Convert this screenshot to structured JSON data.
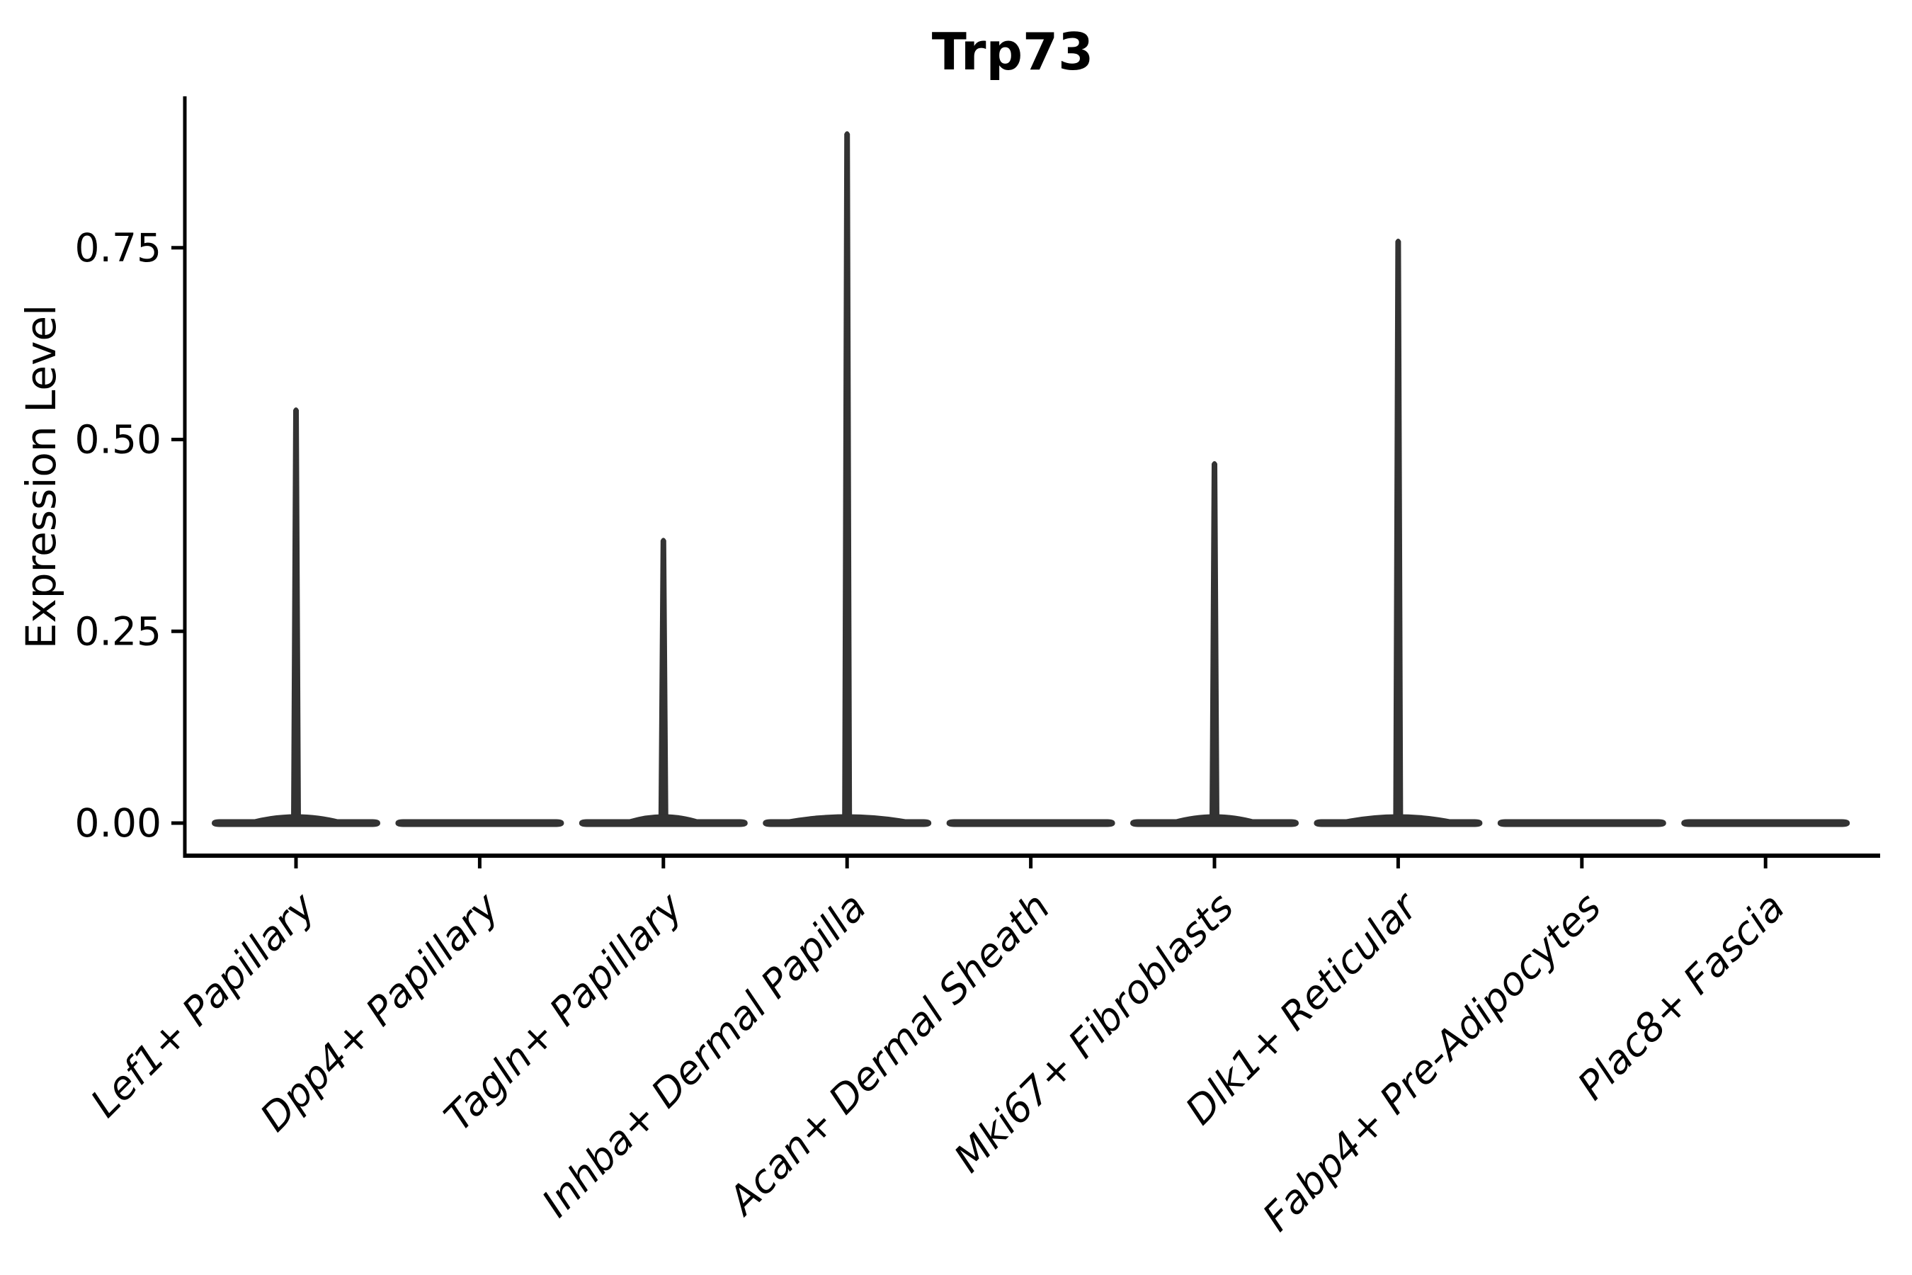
{
  "chart_data": {
    "type": "violin",
    "title": "Trp73",
    "ylabel": "Expression Level",
    "xlabel": "",
    "categories": [
      "Lef1+ Papillary",
      "Dpp4+ Papillary",
      "Tagln+ Papillary",
      "Inhba+ Dermal Papilla",
      "Acan+ Dermal Sheath",
      "Mki67+ Fibroblasts",
      "Dlk1+ Reticular",
      "Fabp4+ Pre-Adipocytes",
      "Plac8+ Fascia"
    ],
    "series": [
      {
        "name": "Trp73 expression (violin max per cluster)",
        "values": [
          0.54,
          0,
          0.37,
          0.9,
          0,
          0.47,
          0.76,
          0,
          0
        ]
      }
    ],
    "y_ticks": {
      "values": [
        0,
        0.25,
        0.5,
        0.75
      ],
      "labels": [
        "0.00",
        "0.25",
        "0.50",
        "0.75"
      ]
    },
    "ylim": [
      -0.043,
      0.944
    ],
    "grid": false,
    "legend": "none",
    "colors": {
      "violin_fill": "#333333",
      "axis": "#000000",
      "text": "#000000",
      "background": "#ffffff"
    }
  }
}
